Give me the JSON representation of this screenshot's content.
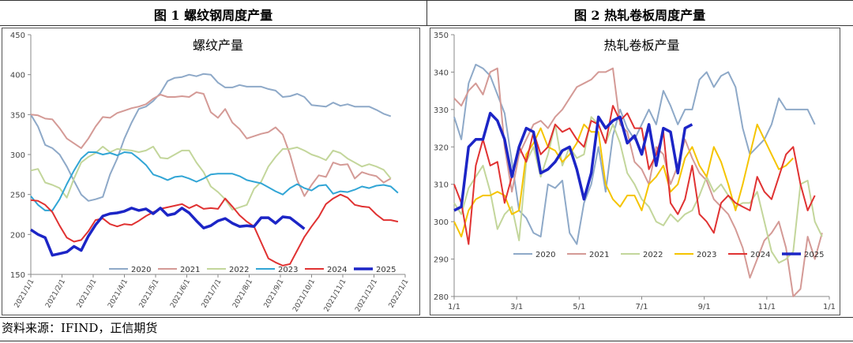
{
  "figures": [
    {
      "title": "图 1  螺纹钢周度产量"
    },
    {
      "title": "图 2  热轧卷板周度产量"
    }
  ],
  "source": "资料来源：IFIND，正信期货",
  "chart_data": [
    {
      "type": "line",
      "title": "螺纹产量",
      "ylim": [
        150,
        450
      ],
      "yticks": [
        150,
        200,
        250,
        300,
        350,
        400,
        450
      ],
      "xticks": [
        "2021/1/1",
        "2021/2/1",
        "2021/3/1",
        "2021/4/1",
        "2021/5/1",
        "2021/6/1",
        "2021/7/1",
        "2021/8/1",
        "2021/9/1",
        "2021/10/1",
        "2021/11/1",
        "2021/12/1",
        "2022/1/1"
      ],
      "xrange": [
        0,
        52
      ],
      "legend": "bottom",
      "grid": false,
      "series": [
        {
          "name": "2020",
          "color": "#8EA9C8",
          "width": 2,
          "values": [
            350,
            335,
            312,
            308,
            300,
            285,
            267,
            250,
            242,
            244,
            247,
            275,
            295,
            320,
            340,
            357,
            360,
            367,
            377,
            392,
            396,
            397,
            400,
            398,
            401,
            400,
            390,
            384,
            384,
            387,
            385,
            385,
            385,
            382,
            380,
            372,
            373,
            376,
            372,
            362,
            361,
            360,
            365,
            361,
            363,
            360,
            360,
            360,
            356,
            351,
            348
          ]
        },
        {
          "name": "2021",
          "color": "#D49A96",
          "width": 2,
          "values": [
            350,
            349,
            345,
            344,
            333,
            320,
            314,
            308,
            320,
            335,
            347,
            346,
            352,
            355,
            358,
            360,
            363,
            370,
            375,
            372,
            372,
            373,
            372,
            378,
            376,
            353,
            346,
            357,
            340,
            332,
            320,
            323,
            326,
            328,
            334,
            325,
            300,
            268,
            248,
            262,
            274,
            272,
            290,
            287,
            288,
            270,
            278,
            275,
            273,
            265,
            270
          ]
        },
        {
          "name": "2022",
          "color": "#C3D69B",
          "width": 2,
          "values": [
            280,
            282,
            265,
            262,
            258,
            246,
            270,
            290,
            297,
            302,
            310,
            303,
            307,
            306,
            305,
            303,
            305,
            310,
            296,
            295,
            300,
            305,
            305,
            290,
            278,
            260,
            253,
            244,
            231,
            234,
            237,
            257,
            266,
            285,
            297,
            307,
            307,
            309,
            305,
            300,
            297,
            293,
            305,
            302,
            295,
            290,
            285,
            288,
            285,
            281,
            270
          ]
        },
        {
          "name": "2023",
          "color": "#31A5D5",
          "width": 2,
          "values": [
            248,
            237,
            230,
            230,
            244,
            263,
            280,
            295,
            303,
            303,
            300,
            302,
            299,
            303,
            302,
            295,
            287,
            275,
            272,
            268,
            272,
            273,
            270,
            266,
            270,
            275,
            276,
            276,
            276,
            273,
            268,
            266,
            264,
            259,
            254,
            250,
            258,
            263,
            258,
            255,
            261,
            262,
            251,
            254,
            253,
            256,
            260,
            258,
            261,
            262,
            260,
            252
          ]
        },
        {
          "name": "2024",
          "color": "#E03232",
          "width": 2,
          "values": [
            243,
            242,
            237,
            228,
            211,
            196,
            191,
            193,
            204,
            218,
            220,
            213,
            210,
            213,
            212,
            217,
            223,
            228,
            232,
            234,
            236,
            238,
            233,
            237,
            232,
            233,
            232,
            245,
            235,
            224,
            216,
            210,
            190,
            170,
            165,
            161,
            163,
            180,
            197,
            210,
            222,
            238,
            245,
            250,
            246,
            237,
            235,
            234,
            225,
            218,
            218,
            216
          ]
        },
        {
          "name": "2025",
          "color": "#1C25C6",
          "width": 3.5,
          "values": [
            206,
            200,
            196,
            174,
            176,
            178,
            185,
            180,
            198,
            212,
            223,
            226,
            227,
            229,
            233,
            230,
            232,
            226,
            233,
            224,
            226,
            233,
            227,
            217,
            208,
            211,
            217,
            220,
            214,
            210,
            211,
            210,
            221,
            221,
            214,
            222,
            221,
            214,
            207
          ]
        }
      ]
    },
    {
      "type": "line",
      "title": "热轧卷板产量",
      "ylim": [
        280,
        350
      ],
      "yticks": [
        280,
        290,
        300,
        310,
        320,
        330,
        340,
        350
      ],
      "xticks": [
        "1/1",
        "3/1",
        "5/1",
        "7/1",
        "9/1",
        "11/1",
        "1/1"
      ],
      "xrange": [
        0,
        52
      ],
      "legend": "bottom",
      "grid": false,
      "series": [
        {
          "name": "2020",
          "color": "#8EA9C8",
          "width": 2,
          "values": [
            328,
            322,
            337,
            342,
            341,
            339,
            334,
            329,
            316,
            303,
            301,
            297,
            296,
            310,
            309,
            311,
            297,
            294,
            305,
            310,
            320,
            308,
            323,
            330,
            325,
            322,
            326,
            330,
            326,
            335,
            331,
            326,
            330,
            330,
            338,
            340,
            336,
            339,
            340,
            336,
            325,
            318,
            320,
            322,
            326,
            333,
            330,
            330,
            330,
            330,
            326
          ]
        },
        {
          "name": "2021",
          "color": "#D49A96",
          "width": 2,
          "values": [
            333,
            331,
            335,
            337,
            334,
            340,
            341,
            320,
            308,
            318,
            322,
            326,
            327,
            325,
            328,
            330,
            333,
            336,
            337,
            338,
            340,
            340,
            341,
            326,
            324,
            316,
            314,
            310,
            320,
            318,
            310,
            315,
            322,
            317,
            313,
            311,
            306,
            304,
            302,
            298,
            293,
            285,
            290,
            295,
            297,
            300,
            293,
            280,
            282,
            296,
            290,
            297
          ]
        },
        {
          "name": "2022",
          "color": "#C3D69B",
          "width": 2,
          "values": [
            305,
            302,
            309,
            312,
            315,
            308,
            298,
            302,
            304,
            295,
            316,
            320,
            312,
            318,
            326,
            315,
            320,
            317,
            318,
            328,
            326,
            321,
            326,
            321,
            313,
            310,
            306,
            304,
            300,
            299,
            302,
            300,
            302,
            303,
            307,
            312,
            308,
            310,
            307,
            304,
            305,
            305,
            308,
            300,
            292,
            289,
            290,
            292,
            310,
            311,
            300,
            296
          ]
        },
        {
          "name": "2023",
          "color": "#F5C400",
          "width": 2,
          "values": [
            300,
            296,
            303,
            306,
            307,
            307,
            308,
            307,
            302,
            303,
            318,
            321,
            325,
            320,
            319,
            316,
            318,
            321,
            326,
            324,
            324,
            310,
            306,
            304,
            307,
            307,
            303,
            310,
            312,
            315,
            308,
            310,
            317,
            320,
            315,
            312,
            320,
            316,
            310,
            303,
            310,
            318,
            326,
            322,
            318,
            314,
            315,
            317
          ]
        },
        {
          "name": "2024",
          "color": "#E03232",
          "width": 2,
          "values": [
            310,
            305,
            294,
            315,
            322,
            315,
            316,
            305,
            312,
            320,
            316,
            324,
            318,
            320,
            326,
            324,
            325,
            322,
            320,
            327,
            326,
            321,
            331,
            327,
            329,
            325,
            325,
            314,
            318,
            324,
            305,
            302,
            306,
            315,
            302,
            300,
            297,
            305,
            307,
            305,
            304,
            303,
            312,
            308,
            306,
            312,
            318,
            320,
            310,
            303,
            307
          ]
        },
        {
          "name": "2025",
          "color": "#1C25C6",
          "width": 3.5,
          "values": [
            303,
            304,
            320,
            322,
            322,
            329,
            327,
            322,
            312,
            320,
            325,
            324,
            313,
            314,
            316,
            319,
            320,
            314,
            306,
            313,
            328,
            325,
            327,
            328,
            321,
            323,
            318,
            326,
            315,
            325,
            324,
            313,
            325,
            326
          ]
        }
      ]
    }
  ]
}
